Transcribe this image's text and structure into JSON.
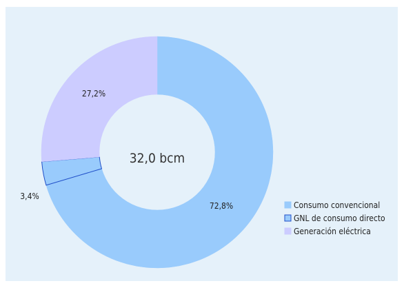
{
  "chart_data": {
    "type": "pie",
    "center_label": "32,0 bcm",
    "slices": [
      {
        "name": "Consumo convencional",
        "value": 72.8,
        "label": "72,8%",
        "color": "#99cbfc",
        "stroke": "#99cbfc"
      },
      {
        "name": "GNL de consumo directo",
        "value": 3.4,
        "label": "3,4%",
        "color": "#99cbfc",
        "stroke": "#1f4ec8"
      },
      {
        "name": "Generación eléctrica",
        "value": 27.2,
        "label": "27,2%",
        "color": "#ccccff",
        "stroke": "#ccccff"
      }
    ],
    "legend_position": "bottom-right",
    "background": "#e5f1fa"
  }
}
